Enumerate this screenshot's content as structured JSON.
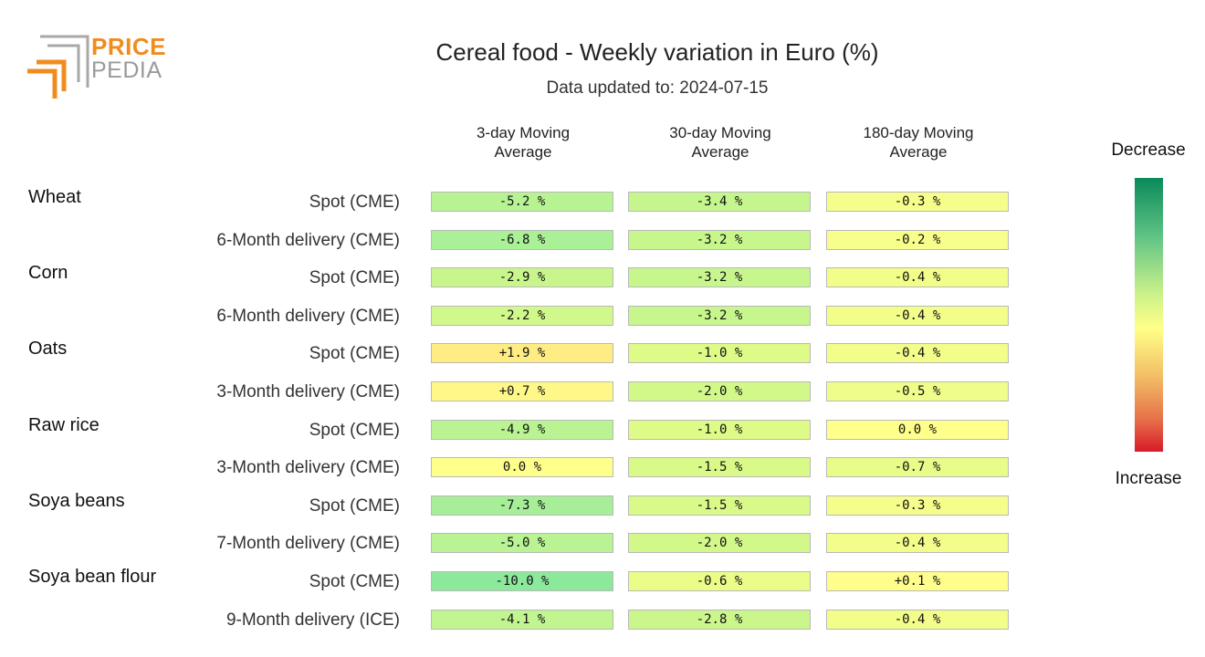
{
  "logo": {
    "line1": "PRICE",
    "line2": "PEDIA"
  },
  "chart_data": {
    "type": "table",
    "title": "Cereal food - Weekly variation in Euro (%)",
    "subtitle": "Data updated to: 2024-07-15",
    "columns": [
      "3-day Moving Average",
      "30-day Moving Average",
      "180-day Moving Average"
    ],
    "column_lines": [
      [
        "3-day Moving",
        "Average"
      ],
      [
        "30-day Moving",
        "Average"
      ],
      [
        "180-day Moving",
        "Average"
      ]
    ],
    "scale": {
      "top_label": "Decrease",
      "bottom_label": "Increase",
      "top_color": "#0a8a5a",
      "bottom_color": "#d81a2a"
    },
    "groups": [
      {
        "name": "Wheat",
        "rows": [
          {
            "label": "Spot (CME)",
            "values": [
              -5.2,
              -3.4,
              -0.3
            ],
            "display": [
              "-5.2 %",
              "-3.4 %",
              "-0.3 %"
            ]
          },
          {
            "label": "6-Month delivery (CME)",
            "values": [
              -6.8,
              -3.2,
              -0.2
            ],
            "display": [
              "-6.8 %",
              "-3.2 %",
              "-0.2 %"
            ]
          }
        ]
      },
      {
        "name": "Corn",
        "rows": [
          {
            "label": "Spot (CME)",
            "values": [
              -2.9,
              -3.2,
              -0.4
            ],
            "display": [
              "-2.9 %",
              "-3.2 %",
              "-0.4 %"
            ]
          },
          {
            "label": "6-Month delivery (CME)",
            "values": [
              -2.2,
              -3.2,
              -0.4
            ],
            "display": [
              "-2.2 %",
              "-3.2 %",
              "-0.4 %"
            ]
          }
        ]
      },
      {
        "name": "Oats",
        "rows": [
          {
            "label": "Spot (CME)",
            "values": [
              1.9,
              -1.0,
              -0.4
            ],
            "display": [
              "+1.9 %",
              "-1.0 %",
              "-0.4 %"
            ]
          },
          {
            "label": "3-Month delivery (CME)",
            "values": [
              0.7,
              -2.0,
              -0.5
            ],
            "display": [
              "+0.7 %",
              "-2.0 %",
              "-0.5 %"
            ]
          }
        ]
      },
      {
        "name": "Raw rice",
        "rows": [
          {
            "label": "Spot (CME)",
            "values": [
              -4.9,
              -1.0,
              0.0
            ],
            "display": [
              "-4.9 %",
              "-1.0 %",
              "0.0 %"
            ]
          },
          {
            "label": "3-Month delivery (CME)",
            "values": [
              0.0,
              -1.5,
              -0.7
            ],
            "display": [
              "0.0 %",
              "-1.5 %",
              "-0.7 %"
            ]
          }
        ]
      },
      {
        "name": "Soya beans",
        "rows": [
          {
            "label": "Spot (CME)",
            "values": [
              -7.3,
              -1.5,
              -0.3
            ],
            "display": [
              "-7.3 %",
              "-1.5 %",
              "-0.3 %"
            ]
          },
          {
            "label": "7-Month delivery (CME)",
            "values": [
              -5.0,
              -2.0,
              -0.4
            ],
            "display": [
              "-5.0 %",
              "-2.0 %",
              "-0.4 %"
            ]
          }
        ]
      },
      {
        "name": "Soya bean flour",
        "rows": [
          {
            "label": "Spot (CME)",
            "values": [
              -10.0,
              -0.6,
              0.1
            ],
            "display": [
              "-10.0 %",
              "-0.6 %",
              "+0.1 %"
            ]
          },
          {
            "label": "9-Month delivery (ICE)",
            "values": [
              -4.1,
              -2.8,
              -0.4
            ],
            "display": [
              "-4.1 %",
              "-2.8 %",
              "-0.4 %"
            ]
          }
        ]
      }
    ]
  }
}
